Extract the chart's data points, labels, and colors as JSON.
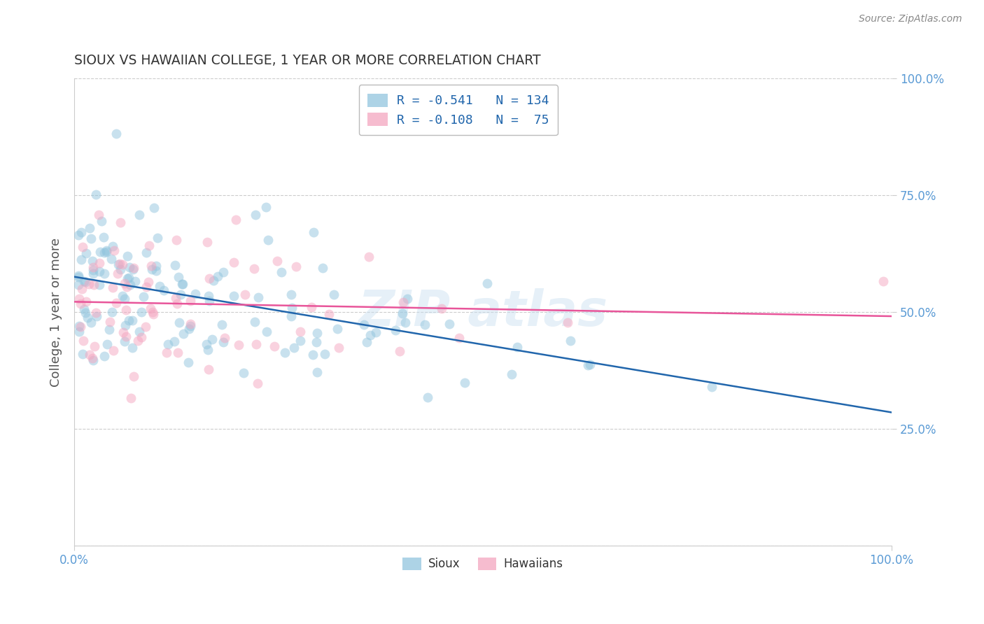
{
  "title": "SIOUX VS HAWAIIAN COLLEGE, 1 YEAR OR MORE CORRELATION CHART",
  "source_text": "Source: ZipAtlas.com",
  "ylabel": "College, 1 year or more",
  "R_sioux": -0.541,
  "N_sioux": 134,
  "R_hawaiian": -0.108,
  "N_hawaiian": 75,
  "sioux_color": "#92c5de",
  "hawaiian_color": "#f4a6c0",
  "sioux_line_color": "#2166ac",
  "hawaiian_line_color": "#e8559a",
  "grid_color": "#cccccc",
  "tick_color": "#5b9bd5",
  "title_color": "#333333",
  "source_color": "#888888",
  "legend_text_color": "#2166ac",
  "marker_size": 100,
  "marker_alpha": 0.5,
  "line_width": 1.8,
  "xlim": [
    0.0,
    1.0
  ],
  "ylim": [
    0.0,
    1.0
  ],
  "yticks": [
    0.25,
    0.5,
    0.75,
    1.0
  ],
  "ytick_labels": [
    "25.0%",
    "50.0%",
    "75.0%",
    "100.0%"
  ],
  "xtick_labels": [
    "0.0%",
    "100.0%"
  ],
  "watermark": "ZIPAtlas",
  "watermark_color": "#c8dff0"
}
